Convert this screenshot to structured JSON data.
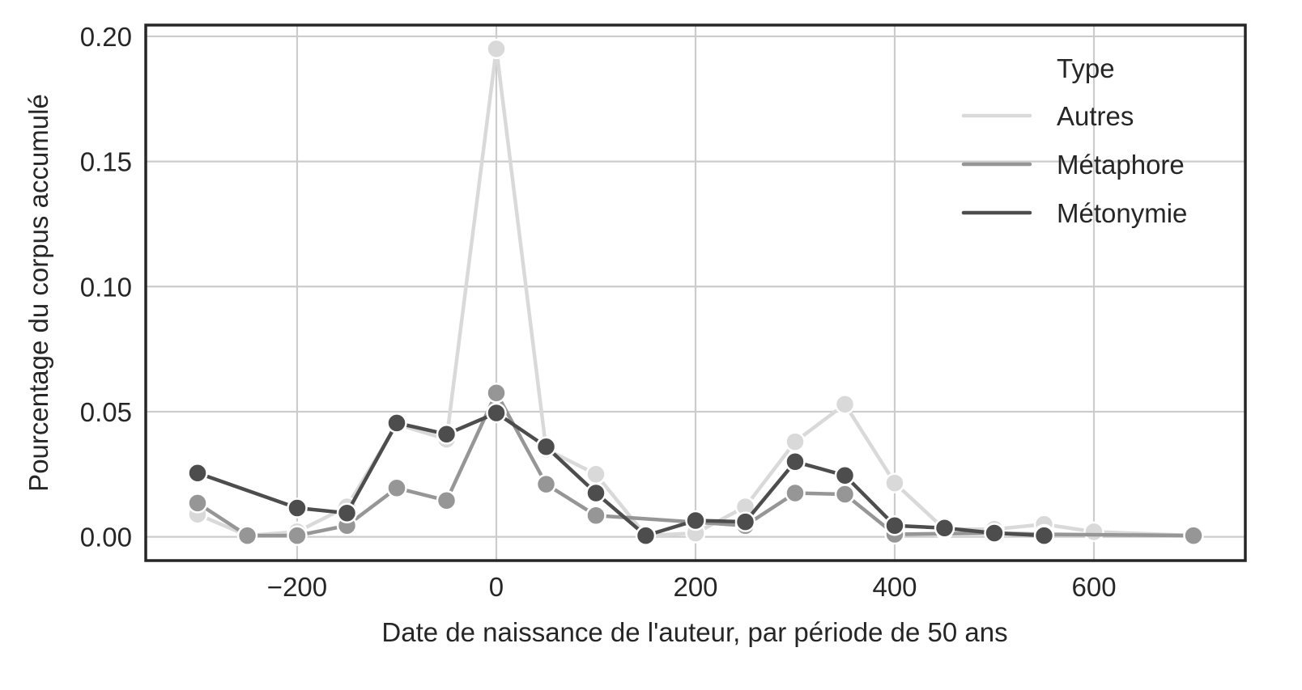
{
  "chart_data": {
    "type": "line",
    "title": "",
    "xlabel": "Date de naissance de l'auteur, par période de 50 ans",
    "ylabel": "Pourcentage du corpus accumulé",
    "xlim": [
      -352,
      752
    ],
    "ylim": [
      -0.0095,
      0.2045
    ],
    "xticks": [
      -200,
      0,
      200,
      400,
      600
    ],
    "xtick_labels": [
      "−200",
      "0",
      "200",
      "400",
      "600"
    ],
    "yticks": [
      0.0,
      0.05,
      0.1,
      0.15,
      0.2
    ],
    "ytick_labels": [
      "0.00",
      "0.05",
      "0.10",
      "0.15",
      "0.20"
    ],
    "grid": true,
    "legend": {
      "title": "Type",
      "placement": "top-right"
    },
    "series": [
      {
        "name": "Autres",
        "color": "#d9d9d9",
        "points": [
          [
            -300,
            0.009
          ],
          [
            -250,
            0.0005
          ],
          [
            -200,
            0.002
          ],
          [
            -150,
            0.012
          ],
          [
            -100,
            0.045
          ],
          [
            -50,
            0.039
          ],
          [
            0,
            0.195
          ],
          [
            50,
            0.035
          ],
          [
            100,
            0.025
          ],
          [
            150,
            0.0005
          ],
          [
            200,
            0.0015
          ],
          [
            250,
            0.012
          ],
          [
            300,
            0.038
          ],
          [
            350,
            0.053
          ],
          [
            400,
            0.0215
          ],
          [
            450,
            0.003
          ],
          [
            500,
            0.003
          ],
          [
            550,
            0.005
          ],
          [
            600,
            0.002
          ],
          [
            700,
            0.0005
          ]
        ]
      },
      {
        "name": "Métaphore",
        "color": "#969696",
        "points": [
          [
            -300,
            0.0135
          ],
          [
            -250,
            0.0005
          ],
          [
            -200,
            0.0005
          ],
          [
            -150,
            0.0045
          ],
          [
            -100,
            0.0195
          ],
          [
            -50,
            0.0145
          ],
          [
            0,
            0.0575
          ],
          [
            50,
            0.021
          ],
          [
            100,
            0.0085
          ],
          [
            250,
            0.0045
          ],
          [
            300,
            0.0175
          ],
          [
            350,
            0.017
          ],
          [
            400,
            0.001
          ],
          [
            500,
            0.0015
          ],
          [
            550,
            0.001
          ],
          [
            700,
            0.0005
          ]
        ]
      },
      {
        "name": "Métonymie",
        "color": "#4d4d4d",
        "points": [
          [
            -300,
            0.0255
          ],
          [
            -200,
            0.0115
          ],
          [
            -150,
            0.0095
          ],
          [
            -100,
            0.0455
          ],
          [
            -50,
            0.041
          ],
          [
            0,
            0.0495
          ],
          [
            50,
            0.036
          ],
          [
            100,
            0.0175
          ],
          [
            150,
            0.0005
          ],
          [
            200,
            0.0065
          ],
          [
            250,
            0.006
          ],
          [
            300,
            0.03
          ],
          [
            350,
            0.0245
          ],
          [
            400,
            0.0045
          ],
          [
            450,
            0.0035
          ],
          [
            500,
            0.0015
          ],
          [
            550,
            0.0005
          ]
        ]
      }
    ]
  }
}
